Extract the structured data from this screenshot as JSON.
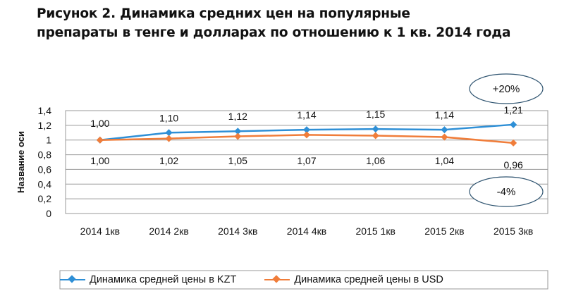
{
  "title_line1": "Рисунок 2.  Динамика средних цен на популярные",
  "title_line2": "препараты в тенге и долларах по отношению к 1 кв.  2014 года",
  "chart_data": {
    "type": "line",
    "categories": [
      "2014 1кв",
      "2014 2кв",
      "2014 3кв",
      "2014 4кв",
      "2015 1кв",
      "2015 2кв",
      "2015 3кв"
    ],
    "series": [
      {
        "name": "Динамика  средней цены в KZT",
        "color": "#2e8fd6",
        "values": [
          1.0,
          1.1,
          1.12,
          1.14,
          1.15,
          1.14,
          1.21
        ],
        "labels": [
          "1,00",
          "1,10",
          "1,12",
          "1,14",
          "1,15",
          "1,14",
          "1,21"
        ]
      },
      {
        "name": "Динамика  средней цены в USD",
        "color": "#f07d3a",
        "values": [
          1.0,
          1.02,
          1.05,
          1.07,
          1.06,
          1.04,
          0.96
        ],
        "labels": [
          "1,00",
          "1,02",
          "1,05",
          "1,07",
          "1,06",
          "1,04",
          "0,96"
        ]
      }
    ],
    "ylabel": "Название оси",
    "ylim": [
      0,
      1.4
    ],
    "yticks": [
      "0",
      "0,2",
      "0,4",
      "0,6",
      "0,8",
      "1",
      "1,2",
      "1,4"
    ],
    "grid": true,
    "legend_position": "bottom",
    "annotations": [
      "+20%",
      "-4%"
    ]
  }
}
